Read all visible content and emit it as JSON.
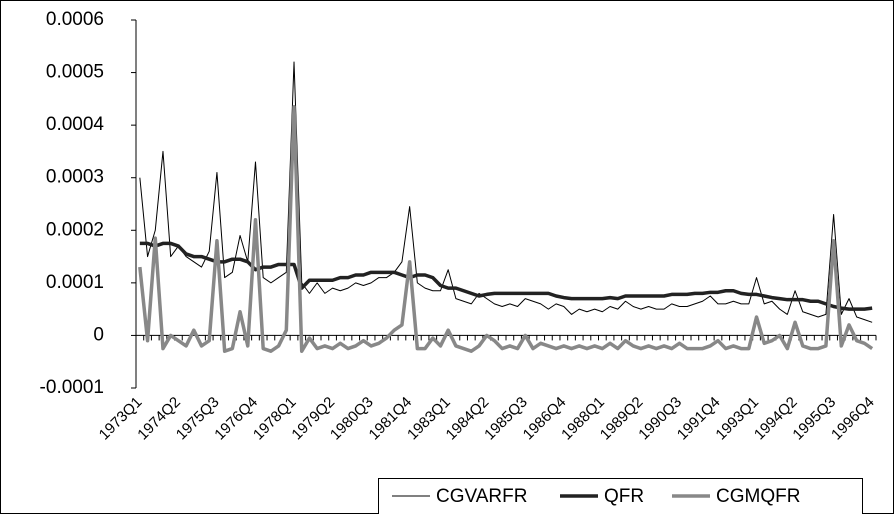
{
  "chart_data": {
    "type": "line",
    "categories": [
      "1973Q1",
      null,
      null,
      null,
      null,
      "1974Q2",
      null,
      null,
      null,
      null,
      "1975Q3",
      null,
      null,
      null,
      null,
      "1976Q4",
      null,
      null,
      null,
      null,
      "1978Q1",
      null,
      null,
      null,
      null,
      "1979Q2",
      null,
      null,
      null,
      null,
      "1980Q3",
      null,
      null,
      null,
      null,
      "1981Q4",
      null,
      null,
      null,
      null,
      "1983Q1",
      null,
      null,
      null,
      null,
      "1984Q2",
      null,
      null,
      null,
      null,
      "1985Q3",
      null,
      null,
      null,
      null,
      "1986Q4",
      null,
      null,
      null,
      null,
      "1988Q1",
      null,
      null,
      null,
      null,
      "1989Q2",
      null,
      null,
      null,
      null,
      "1990Q3",
      null,
      null,
      null,
      null,
      "1991Q4",
      null,
      null,
      null,
      null,
      "1993Q1",
      null,
      null,
      null,
      null,
      "1994Q2",
      null,
      null,
      null,
      null,
      "1995Q3",
      null,
      null,
      null,
      null,
      "1996Q4"
    ],
    "series": [
      {
        "name": "CGVARFR",
        "color": "#000000",
        "width": 1,
        "values": [
          0.0003,
          0.00015,
          0.0002,
          0.00035,
          0.00015,
          0.00017,
          0.00015,
          0.00014,
          0.00013,
          0.00016,
          0.00031,
          0.00011,
          0.00012,
          0.00019,
          0.00014,
          0.00033,
          0.00011,
          0.0001,
          0.00011,
          0.00012,
          0.00052,
          0.0001,
          8e-05,
          0.0001,
          8e-05,
          9e-05,
          8.5e-05,
          9e-05,
          0.0001,
          9.5e-05,
          0.0001,
          0.00011,
          0.00011,
          0.00012,
          0.00014,
          0.000245,
          0.0001,
          9e-05,
          8.5e-05,
          8.5e-05,
          0.000125,
          7e-05,
          6.5e-05,
          6e-05,
          8e-05,
          7e-05,
          6e-05,
          5.5e-05,
          6e-05,
          5.5e-05,
          7e-05,
          6.5e-05,
          6e-05,
          5e-05,
          6e-05,
          5.5e-05,
          4e-05,
          5e-05,
          4.5e-05,
          5e-05,
          4.5e-05,
          5.5e-05,
          5e-05,
          6.5e-05,
          5.5e-05,
          5e-05,
          5.5e-05,
          5e-05,
          5e-05,
          6e-05,
          5.5e-05,
          5.5e-05,
          6e-05,
          6.5e-05,
          7.5e-05,
          6e-05,
          6e-05,
          6.5e-05,
          6e-05,
          6e-05,
          0.00011,
          6e-05,
          6.5e-05,
          5e-05,
          4e-05,
          8.5e-05,
          4.5e-05,
          4e-05,
          3.5e-05,
          4e-05,
          0.00023,
          4e-05,
          7e-05,
          3.5e-05,
          3e-05,
          2.5e-05
        ]
      },
      {
        "name": "QFR",
        "color": "#222222",
        "width": 3.5,
        "values": [
          0.000175,
          0.000175,
          0.00017,
          0.000175,
          0.000175,
          0.00017,
          0.000155,
          0.00015,
          0.00015,
          0.000145,
          0.00014,
          0.00014,
          0.000145,
          0.000145,
          0.00014,
          0.000125,
          0.00013,
          0.00013,
          0.000135,
          0.000135,
          0.000135,
          9e-05,
          0.000105,
          0.000105,
          0.000105,
          0.000105,
          0.00011,
          0.00011,
          0.000115,
          0.000115,
          0.00012,
          0.00012,
          0.00012,
          0.00012,
          0.000115,
          0.00011,
          0.000115,
          0.000115,
          0.00011,
          9.5e-05,
          9e-05,
          9e-05,
          8.5e-05,
          8e-05,
          7.5e-05,
          7.8e-05,
          8e-05,
          8e-05,
          8e-05,
          8e-05,
          8e-05,
          8e-05,
          8e-05,
          8e-05,
          7.5e-05,
          7.2e-05,
          7e-05,
          7e-05,
          7e-05,
          7e-05,
          7e-05,
          7.2e-05,
          7e-05,
          7.5e-05,
          7.5e-05,
          7.5e-05,
          7.5e-05,
          7.5e-05,
          7.5e-05,
          7.8e-05,
          7.8e-05,
          7.8e-05,
          8e-05,
          8e-05,
          8.2e-05,
          8.2e-05,
          8.5e-05,
          8.5e-05,
          8e-05,
          7.8e-05,
          7.8e-05,
          7.5e-05,
          7.2e-05,
          7e-05,
          6.8e-05,
          6.8e-05,
          6.8e-05,
          6.5e-05,
          6.5e-05,
          6e-05,
          5.5e-05,
          5.2e-05,
          5e-05,
          5e-05,
          5e-05,
          5.2e-05
        ]
      },
      {
        "name": "CGMQFR",
        "color": "#888888",
        "width": 3.5,
        "values": [
          0.00013,
          -1e-05,
          0.000185,
          -2.5e-05,
          0,
          -1e-05,
          -2e-05,
          1e-05,
          -2e-05,
          -1e-05,
          0.00018,
          -3e-05,
          -2.5e-05,
          4.5e-05,
          -2e-05,
          0.00022,
          -2.5e-05,
          -3e-05,
          -2e-05,
          1e-05,
          0.000435,
          -3e-05,
          -5e-06,
          -2.5e-05,
          -2e-05,
          -2.5e-05,
          -1.5e-05,
          -2.5e-05,
          -2e-05,
          -1e-05,
          -2e-05,
          -1.5e-05,
          -5e-06,
          1e-05,
          2e-05,
          0.00014,
          -2.5e-05,
          -2.5e-05,
          -5e-06,
          -2e-05,
          1e-05,
          -2e-05,
          -2.5e-05,
          -3e-05,
          -2e-05,
          0,
          -1e-05,
          -2.5e-05,
          -2e-05,
          -2.5e-05,
          0,
          -2.5e-05,
          -1.5e-05,
          -2e-05,
          -2.5e-05,
          -2e-05,
          -2.5e-05,
          -2e-05,
          -2.5e-05,
          -2e-05,
          -2.5e-05,
          -1.5e-05,
          -2.5e-05,
          -1e-05,
          -2e-05,
          -2.5e-05,
          -2e-05,
          -2.5e-05,
          -2e-05,
          -2.5e-05,
          -1.5e-05,
          -2.5e-05,
          -2.5e-05,
          -2.5e-05,
          -2e-05,
          -1e-05,
          -2.5e-05,
          -2e-05,
          -2.5e-05,
          -2.5e-05,
          3.5e-05,
          -1.5e-05,
          -1e-05,
          0,
          -2.5e-05,
          2.5e-05,
          -2e-05,
          -2.5e-05,
          -2.5e-05,
          -2e-05,
          0.00018,
          -2e-05,
          2e-05,
          -1e-05,
          -1.5e-05,
          -2.5e-05
        ]
      }
    ],
    "ylim": [
      -0.0001,
      0.0006
    ],
    "yticks": [
      -0.0001,
      0,
      0.0001,
      0.0002,
      0.0003,
      0.0004,
      0.0005,
      0.0006
    ],
    "grid": false,
    "legend": "bottom"
  }
}
